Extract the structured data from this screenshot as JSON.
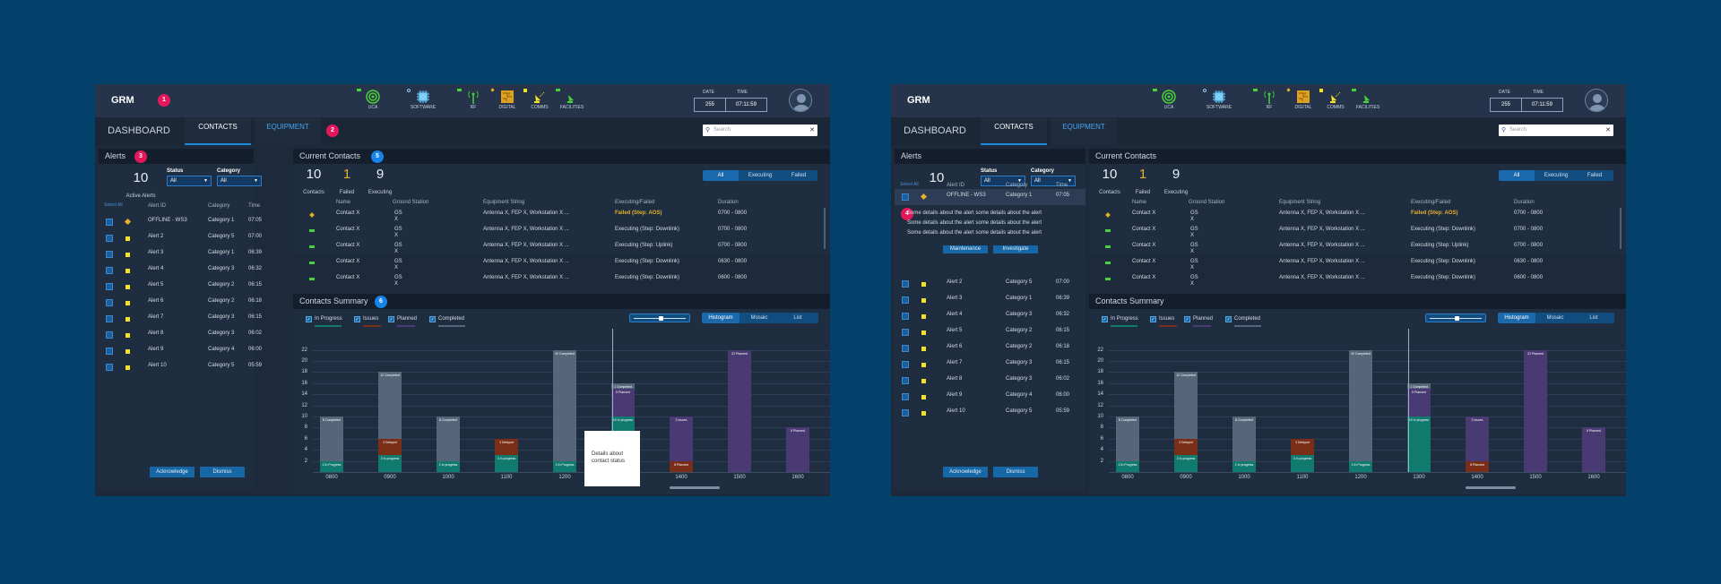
{
  "colors": {
    "background": "#03406a",
    "panel": "#1f2d40",
    "accent": "#1d8ce0",
    "in_progress": "#117a6e",
    "issues": "#7a2e17",
    "planned": "#4a3a73",
    "completed": "#56667a",
    "failed": "#e6b12a",
    "ok": "#49d23b"
  },
  "header": {
    "app_title": "GRM",
    "systems": [
      {
        "label": "UCA",
        "icon": "radar-icon",
        "status": "ok"
      },
      {
        "label": "SOFTWARE",
        "icon": "chip-icon",
        "status": "standby"
      },
      {
        "label": "RF",
        "icon": "antenna-icon",
        "status": "ok"
      },
      {
        "label": "DIGITAL",
        "icon": "circuit-icon",
        "status": "caution"
      },
      {
        "label": "COMMS",
        "icon": "satellite-dish-icon",
        "status": "warning"
      },
      {
        "label": "FACILITIES",
        "icon": "facility-dish-icon",
        "status": "ok"
      }
    ],
    "date_label": "DATE",
    "time_label": "TIME",
    "date": "255",
    "time_left": "07:11:59",
    "time_right": "07:11:59"
  },
  "nav": {
    "dashboard": "DASHBOARD",
    "tabs": [
      {
        "label": "CONTACTS",
        "active": true
      },
      {
        "label": "EQUIPMENT",
        "active": false
      }
    ],
    "search_placeholder": "Search"
  },
  "badges": [
    "1",
    "2",
    "3",
    "4",
    "5",
    "6"
  ],
  "alerts": {
    "title": "Alerts",
    "count": "10",
    "count_label": "Active Alerts",
    "status_label": "Status",
    "status_value": "All",
    "category_label": "Category",
    "category_value": "All",
    "select_all": "Select All",
    "columns": [
      "Alert ID",
      "Category",
      "Time"
    ],
    "rows": [
      {
        "id": "OFFLINE - WS3",
        "category": "Category 1",
        "time": "07:05",
        "severity": "caution"
      },
      {
        "id": "Alert 2",
        "category": "Category 5",
        "time": "07:00",
        "severity": "warning"
      },
      {
        "id": "Alert 3",
        "category": "Category 1",
        "time": "06:39",
        "severity": "warning"
      },
      {
        "id": "Alert 4",
        "category": "Category 3",
        "time": "06:32",
        "severity": "warning"
      },
      {
        "id": "Alert 5",
        "category": "Category 2",
        "time": "06:15",
        "severity": "warning"
      },
      {
        "id": "Alert 6",
        "category": "Category 2",
        "time": "06:18",
        "severity": "warning"
      },
      {
        "id": "Alert 7",
        "category": "Category 3",
        "time": "06:15",
        "severity": "warning"
      },
      {
        "id": "Alert 8",
        "category": "Category 3",
        "time": "06:02",
        "severity": "warning"
      },
      {
        "id": "Alert 9",
        "category": "Category 4",
        "time": "06:00",
        "severity": "warning"
      },
      {
        "id": "Alert 10",
        "category": "Category 5",
        "time": "05:59",
        "severity": "warning"
      }
    ],
    "detail_lines": [
      "Some details about the alert some details about the alert",
      "Some details about the alert some details about the alert",
      "Some details about the alert some details about the alert"
    ],
    "maintenance": "Maintenance",
    "investigate": "Investigate",
    "acknowledge": "Acknowledge",
    "dismiss": "Dismiss"
  },
  "contacts": {
    "title": "Current Contacts",
    "stats": [
      {
        "value": "10",
        "label": "Contacts"
      },
      {
        "value": "1",
        "label": "Failed"
      },
      {
        "value": "9",
        "label": "Executing"
      }
    ],
    "filters": [
      "All",
      "Executing",
      "Failed"
    ],
    "columns": [
      "Name",
      "Ground Station",
      "Equipment String",
      "Executing/Failed",
      "Duration"
    ],
    "rows": [
      {
        "name": "Contact X",
        "gs1": "GS",
        "gs2": "X",
        "equipment": "Antenna X, FEP X, Workstation X ...",
        "state": "Failed (Step: AOS)",
        "duration": "0700 - 0800",
        "failed": true
      },
      {
        "name": "Contact X",
        "gs1": "GS",
        "gs2": "X",
        "equipment": "Antenna X, FEP X, Workstation X ...",
        "state": "Executing (Step: Downlink)",
        "duration": "0700 - 0800",
        "failed": false
      },
      {
        "name": "Contact X",
        "gs1": "GS",
        "gs2": "X",
        "equipment": "Antenna X, FEP X, Workstation X ...",
        "state": "Executing (Step: Uplink)",
        "duration": "0700 - 0800",
        "failed": false
      },
      {
        "name": "Contact X",
        "gs1": "GS",
        "gs2": "X",
        "equipment": "Antenna X, FEP X, Workstation X ...",
        "state": "Executing (Step: Downlink)",
        "duration": "0630 - 0800",
        "failed": false
      },
      {
        "name": "Contact X",
        "gs1": "GS",
        "gs2": "X",
        "equipment": "Antenna X, FEP X, Workstation X ...",
        "state": "Executing (Step: Downlink)",
        "duration": "0600 - 0800",
        "failed": false
      }
    ]
  },
  "summary": {
    "title": "Contacts Summary",
    "legend": [
      "In Progress",
      "Issues",
      "Planned",
      "Completed"
    ],
    "views": [
      "Histogram",
      "Mosaic",
      "List"
    ],
    "tooltip": "Details about contact status"
  },
  "chart_data": {
    "type": "bar",
    "stacked": true,
    "title": "Contacts Summary",
    "categories": [
      "0800",
      "0900",
      "1000",
      "1100",
      "1200",
      "1300",
      "1400",
      "1500",
      "1600"
    ],
    "yticks": [
      2,
      4,
      6,
      8,
      10,
      12,
      14,
      16,
      18,
      20,
      22
    ],
    "ylim": [
      0,
      23
    ],
    "series": [
      {
        "name": "In Progress",
        "values": [
          2,
          3,
          2,
          3,
          2,
          10,
          0,
          0,
          0
        ]
      },
      {
        "name": "Issues",
        "values": [
          0,
          3,
          0,
          3,
          0,
          0,
          2,
          0,
          0
        ]
      },
      {
        "name": "Planned",
        "values": [
          0,
          0,
          0,
          0,
          0,
          5,
          8,
          22,
          8
        ]
      },
      {
        "name": "Completed",
        "values": [
          8,
          12,
          8,
          0,
          20,
          1,
          0,
          0,
          0
        ]
      }
    ],
    "segment_labels": {
      "0800": [
        "2 In Progress",
        "8 Completed"
      ],
      "0900": [
        "3 In progress",
        "3 Delayed",
        "12 Completed"
      ],
      "1000": [
        "2 In progress",
        "8 Completed"
      ],
      "1100": [
        "3 In progress",
        "3 Delayed"
      ],
      "1200": [
        "2 In Progress",
        "20 Completed"
      ],
      "1300": [
        "10 In progress",
        "5 Planned",
        "1 Completed"
      ],
      "1400": [
        "8 Planned",
        "2 Issues"
      ],
      "1500": [
        "22 Planned"
      ],
      "1600": [
        "8 Planned"
      ]
    },
    "legend_position": "top-left",
    "grid": true
  }
}
